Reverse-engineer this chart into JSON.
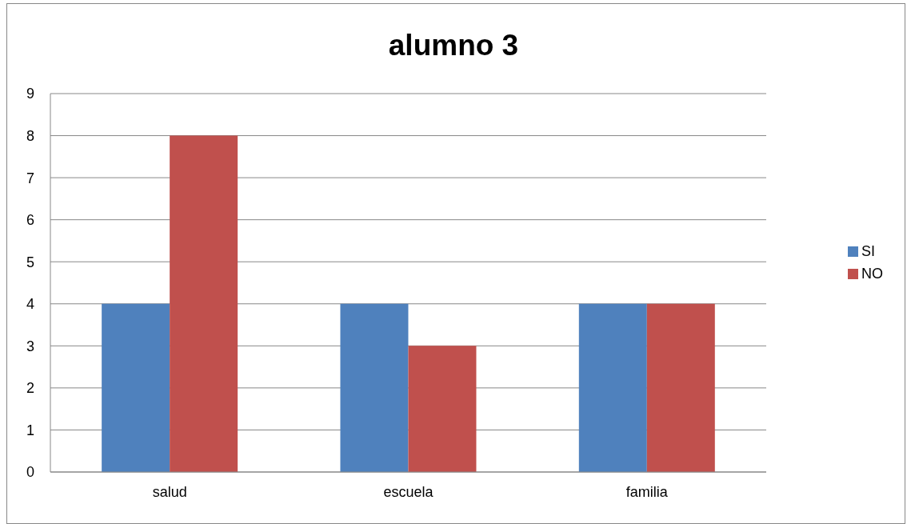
{
  "chart_data": {
    "type": "bar",
    "title": "alumno 3",
    "categories": [
      "salud",
      "escuela",
      "familia"
    ],
    "series": [
      {
        "name": "SI",
        "color": "#4f81bd",
        "values": [
          4,
          4,
          4
        ]
      },
      {
        "name": "NO",
        "color": "#c0504d",
        "values": [
          8,
          3,
          4
        ]
      }
    ],
    "ylim": [
      0,
      9
    ],
    "yticks": [
      0,
      1,
      2,
      3,
      4,
      5,
      6,
      7,
      8,
      9
    ],
    "grid": "y",
    "legend": "right"
  }
}
